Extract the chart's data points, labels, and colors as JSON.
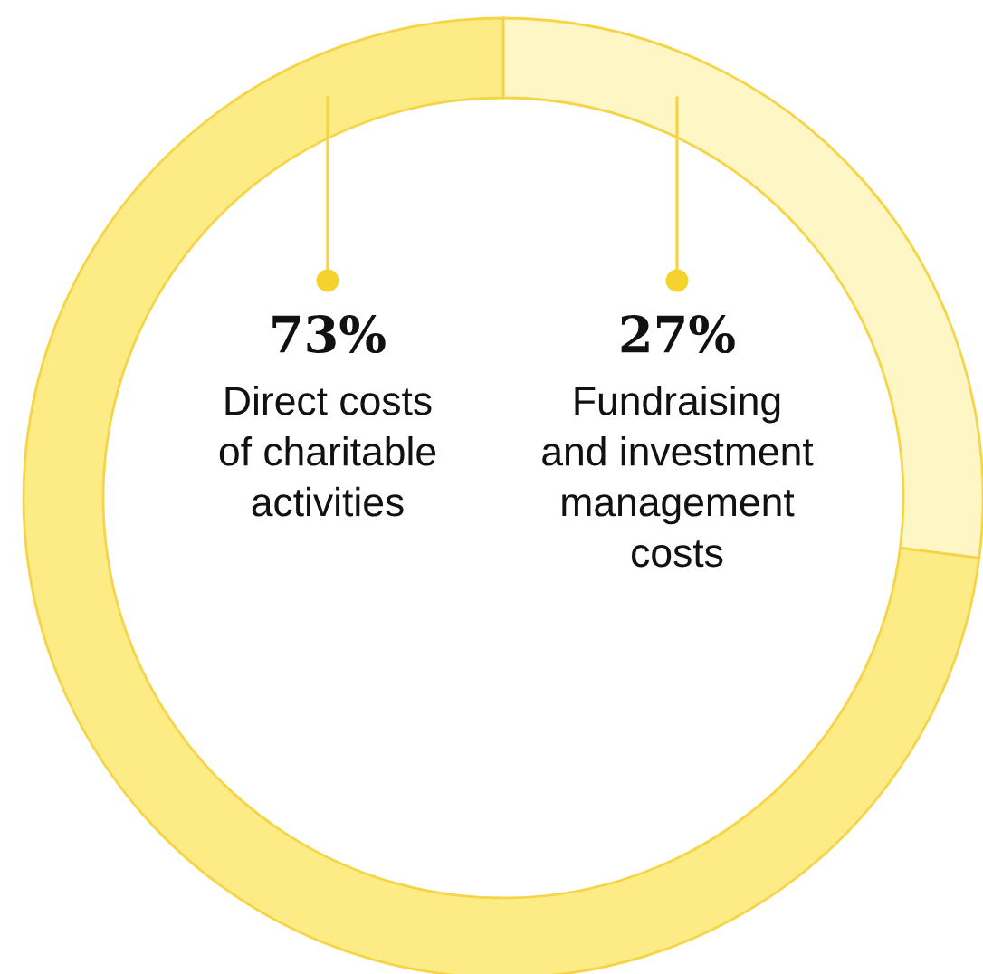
{
  "chart_data": {
    "type": "donut",
    "categories": [
      "Fundraising\nand investment\nmanagement\ncosts",
      "Direct costs\nof charitable\nactivities"
    ],
    "values": [
      27,
      73
    ],
    "colors": [
      "#fef6c4",
      "#fdec86"
    ],
    "value_labels": [
      "27%",
      "73%"
    ],
    "legend": false
  }
}
